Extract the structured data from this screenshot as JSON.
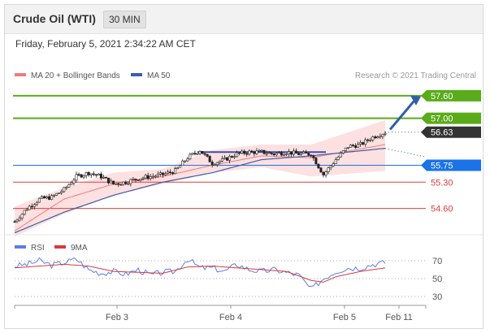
{
  "header": {
    "title": "Crude Oil (WTI)",
    "timeframe": "30 MIN"
  },
  "date_line": "Friday, February 5, 2021 2:34:22 AM CET",
  "legend": {
    "ma20": "MA 20 + Bollinger Bands",
    "ma50": "MA 50",
    "copyright": "Research © 2021 Trading Central"
  },
  "rsi_legend": {
    "rsi": "RSI",
    "ma": "9MA"
  },
  "colors": {
    "resistance": "#5aab1a",
    "pivot": "#1a73e8",
    "support": "#e03b3b",
    "last": "#333333",
    "ma50": "#3b5ea8",
    "ma20": "#f07a7a",
    "bands": "#fde0e0",
    "rsi": "#5b7ee5",
    "rsi_ma": "#d83a3a",
    "arrow": "#2f5fa8"
  },
  "chart_data": [
    {
      "type": "candlestick",
      "x_ticks": [
        "Feb 3",
        "Feb 4",
        "Feb 5",
        "Feb 11"
      ],
      "ylim": [
        53.9,
        57.9
      ],
      "levels": [
        {
          "label": "57.60",
          "value": 57.6,
          "kind": "resistance"
        },
        {
          "label": "57.00",
          "value": 57.0,
          "kind": "resistance"
        },
        {
          "label": "56.63",
          "value": 56.63,
          "kind": "last"
        },
        {
          "label": "55.75",
          "value": 55.75,
          "kind": "pivot"
        },
        {
          "label": "55.30",
          "value": 55.3,
          "kind": "support"
        },
        {
          "label": "54.60",
          "value": 54.6,
          "kind": "support"
        }
      ],
      "price_path": [
        [
          0,
          54.25
        ],
        [
          5,
          54.6
        ],
        [
          10,
          54.85
        ],
        [
          15,
          54.9
        ],
        [
          20,
          55.1
        ],
        [
          25,
          55.45
        ],
        [
          30,
          55.55
        ],
        [
          35,
          55.45
        ],
        [
          40,
          55.25
        ],
        [
          45,
          55.3
        ],
        [
          50,
          55.4
        ],
        [
          55,
          55.45
        ],
        [
          60,
          55.5
        ],
        [
          65,
          55.6
        ],
        [
          70,
          55.95
        ],
        [
          75,
          56.15
        ],
        [
          80,
          55.8
        ],
        [
          85,
          55.9
        ],
        [
          90,
          56.05
        ],
        [
          95,
          56.1
        ],
        [
          100,
          56.1
        ],
        [
          105,
          56.05
        ],
        [
          110,
          56.1
        ],
        [
          115,
          56.05
        ],
        [
          120,
          56.05
        ],
        [
          125,
          55.5
        ],
        [
          130,
          55.9
        ],
        [
          135,
          56.25
        ],
        [
          140,
          56.3
        ],
        [
          145,
          56.5
        ],
        [
          150,
          56.63
        ]
      ],
      "ma50": [
        [
          0,
          53.95
        ],
        [
          20,
          54.5
        ],
        [
          40,
          54.95
        ],
        [
          60,
          55.3
        ],
        [
          80,
          55.55
        ],
        [
          100,
          55.9
        ],
        [
          120,
          56.0
        ],
        [
          150,
          56.2
        ]
      ],
      "ma20": [
        [
          0,
          54.0
        ],
        [
          20,
          54.85
        ],
        [
          40,
          55.25
        ],
        [
          60,
          55.45
        ],
        [
          80,
          55.75
        ],
        [
          100,
          56.0
        ],
        [
          120,
          55.95
        ],
        [
          150,
          56.3
        ]
      ],
      "bands": {
        "upper": [
          [
            0,
            54.65
          ],
          [
            20,
            55.15
          ],
          [
            40,
            55.55
          ],
          [
            60,
            55.65
          ],
          [
            80,
            56.15
          ],
          [
            100,
            56.3
          ],
          [
            120,
            56.3
          ],
          [
            150,
            56.95
          ]
        ],
        "lower": [
          [
            0,
            53.85
          ],
          [
            20,
            54.45
          ],
          [
            40,
            54.95
          ],
          [
            60,
            55.25
          ],
          [
            80,
            55.55
          ],
          [
            100,
            55.7
          ],
          [
            120,
            55.45
          ],
          [
            150,
            55.6
          ]
        ]
      },
      "consolidation": {
        "x": [
          74,
          126
        ],
        "value": 56.1
      }
    },
    {
      "type": "line",
      "ticks": [
        70,
        50,
        30
      ],
      "ylim": [
        20,
        80
      ],
      "rsi": [
        [
          0,
          64
        ],
        [
          5,
          66
        ],
        [
          10,
          70
        ],
        [
          15,
          65
        ],
        [
          20,
          68
        ],
        [
          25,
          72
        ],
        [
          30,
          60
        ],
        [
          35,
          56
        ],
        [
          40,
          58
        ],
        [
          45,
          55
        ],
        [
          50,
          60
        ],
        [
          55,
          54
        ],
        [
          60,
          57
        ],
        [
          65,
          58
        ],
        [
          70,
          72
        ],
        [
          75,
          62
        ],
        [
          80,
          62
        ],
        [
          85,
          58
        ],
        [
          90,
          66
        ],
        [
          95,
          60
        ],
        [
          100,
          58
        ],
        [
          105,
          60
        ],
        [
          110,
          57
        ],
        [
          115,
          54
        ],
        [
          120,
          38
        ],
        [
          125,
          50
        ],
        [
          130,
          58
        ],
        [
          135,
          62
        ],
        [
          140,
          62
        ],
        [
          145,
          66
        ],
        [
          150,
          68
        ]
      ],
      "ma9": [
        [
          0,
          62
        ],
        [
          10,
          64
        ],
        [
          20,
          66
        ],
        [
          30,
          64
        ],
        [
          40,
          58
        ],
        [
          50,
          57
        ],
        [
          60,
          56
        ],
        [
          70,
          63
        ],
        [
          80,
          64
        ],
        [
          90,
          62
        ],
        [
          100,
          60
        ],
        [
          110,
          58
        ],
        [
          120,
          48
        ],
        [
          125,
          46
        ],
        [
          130,
          52
        ],
        [
          140,
          58
        ],
        [
          150,
          62
        ]
      ]
    }
  ]
}
